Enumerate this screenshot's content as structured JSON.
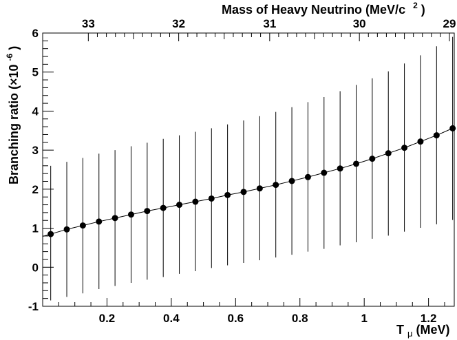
{
  "chart_data": {
    "type": "scatter",
    "title": "",
    "xlabel_main": "T",
    "xlabel_sub": "μ",
    "xlabel_unit": " (MeV)",
    "ylabel": "Branching ratio (×10",
    "ylabel_exp": "-6",
    "ylabel_close": ")",
    "top_axis_label": "Mass of Heavy Neutrino (MeV/c",
    "top_axis_label_exp": "2",
    "top_axis_label_close": ")",
    "xlim": [
      0.0,
      1.28
    ],
    "ylim": [
      -1,
      6
    ],
    "x_ticks": [
      0.2,
      0.4,
      0.6,
      0.8,
      1.0,
      1.2
    ],
    "x_tick_labels": [
      "0.2",
      "0.4",
      "0.6",
      "0.8",
      "1",
      "1.2"
    ],
    "y_ticks": [
      -1,
      0,
      1,
      2,
      3,
      4,
      5,
      6
    ],
    "y_tick_labels": [
      "-1",
      "0",
      "1",
      "2",
      "3",
      "4",
      "5",
      "6"
    ],
    "top_ticks": [
      {
        "label": "33",
        "x": 0.142
      },
      {
        "label": "32",
        "x": 0.423
      },
      {
        "label": "31",
        "x": 0.706
      },
      {
        "label": "30",
        "x": 0.985
      },
      {
        "label": "29",
        "x": 1.265
      }
    ],
    "grid": false,
    "series": [
      {
        "name": "",
        "x": [
          0.025,
          0.075,
          0.125,
          0.175,
          0.225,
          0.275,
          0.325,
          0.375,
          0.425,
          0.475,
          0.525,
          0.575,
          0.625,
          0.675,
          0.725,
          0.775,
          0.825,
          0.875,
          0.925,
          0.975,
          1.025,
          1.075,
          1.125,
          1.175,
          1.225,
          1.275
        ],
        "y": [
          0.85,
          0.97,
          1.07,
          1.17,
          1.26,
          1.35,
          1.44,
          1.52,
          1.6,
          1.68,
          1.76,
          1.85,
          1.93,
          2.02,
          2.11,
          2.21,
          2.31,
          2.42,
          2.53,
          2.65,
          2.78,
          2.92,
          3.06,
          3.22,
          3.38,
          3.56
        ],
        "yerr_low": [
          -0.85,
          -0.76,
          -0.67,
          -0.56,
          -0.48,
          -0.4,
          -0.32,
          -0.25,
          -0.17,
          -0.1,
          -0.02,
          0.05,
          0.11,
          0.18,
          0.25,
          0.32,
          0.4,
          0.47,
          0.56,
          0.64,
          0.73,
          0.81,
          0.91,
          1.01,
          1.1,
          1.21
        ],
        "yerr_high": [
          2.6,
          2.7,
          2.8,
          2.91,
          3.0,
          3.1,
          3.19,
          3.29,
          3.38,
          3.47,
          3.56,
          3.66,
          3.76,
          3.87,
          3.98,
          4.1,
          4.23,
          4.36,
          4.51,
          4.67,
          4.84,
          5.02,
          5.22,
          5.43,
          5.66,
          5.9
        ]
      }
    ],
    "colors": {
      "marker": "#000000",
      "line": "#000000",
      "background": "#ffffff"
    }
  }
}
